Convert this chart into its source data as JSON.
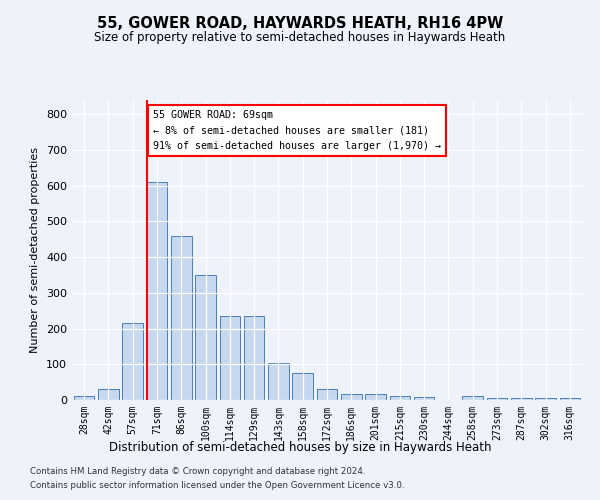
{
  "title": "55, GOWER ROAD, HAYWARDS HEATH, RH16 4PW",
  "subtitle": "Size of property relative to semi-detached houses in Haywards Heath",
  "xlabel": "Distribution of semi-detached houses by size in Haywards Heath",
  "ylabel": "Number of semi-detached properties",
  "footer1": "Contains HM Land Registry data © Crown copyright and database right 2024.",
  "footer2": "Contains public sector information licensed under the Open Government Licence v3.0.",
  "categories": [
    "28sqm",
    "42sqm",
    "57sqm",
    "71sqm",
    "86sqm",
    "100sqm",
    "114sqm",
    "129sqm",
    "143sqm",
    "158sqm",
    "172sqm",
    "186sqm",
    "201sqm",
    "215sqm",
    "230sqm",
    "244sqm",
    "258sqm",
    "273sqm",
    "287sqm",
    "302sqm",
    "316sqm"
  ],
  "values": [
    10,
    30,
    215,
    610,
    460,
    350,
    235,
    235,
    105,
    75,
    30,
    17,
    17,
    10,
    8,
    0,
    10,
    5,
    5,
    5,
    5
  ],
  "bar_color": "#c5d8f0",
  "bar_edge_color": "#4a7fb5",
  "red_line_index": 3,
  "annotation_line1": "55 GOWER ROAD: 69sqm",
  "annotation_line2": "← 8% of semi-detached houses are smaller (181)",
  "annotation_line3": "91% of semi-detached houses are larger (1,970) →",
  "ylim_max": 840,
  "yticks": [
    0,
    100,
    200,
    300,
    400,
    500,
    600,
    700,
    800
  ],
  "bg_color": "#eef2fa",
  "grid_color": "#ffffff"
}
